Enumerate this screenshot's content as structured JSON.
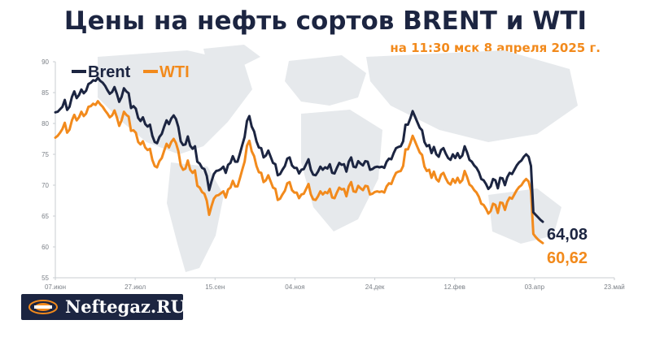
{
  "chart_data": {
    "type": "line",
    "title": "Цены на нефть сортов BRENT и WTI",
    "subtitle": "на 11:30 мск 8 апреля 2025 г.",
    "ylim": [
      55,
      90
    ],
    "yticks": [
      "90",
      "85",
      "80",
      "75",
      "70",
      "65",
      "60",
      "55"
    ],
    "xtick_labels": [
      "07.июн",
      "27.июл",
      "15.сен",
      "04.ноя",
      "24.дек",
      "12.фев",
      "03.апр",
      "23.май"
    ],
    "legend": {
      "position": "top-left"
    },
    "grid": false,
    "series": [
      {
        "name": "Brent",
        "color": "#1c2541",
        "last_label": "64,08",
        "values": [
          81.8,
          81.9,
          82.3,
          82.7,
          83.8,
          82.2,
          82.7,
          84.3,
          85.2,
          84.1,
          84.6,
          85.5,
          84.9,
          85.3,
          86.4,
          86.6,
          87.0,
          86.9,
          87.4,
          86.9,
          86.6,
          86.1,
          85.4,
          84.8,
          85.1,
          85.9,
          84.8,
          83.5,
          84.3,
          85.7,
          85.2,
          84.9,
          82.5,
          82.8,
          82.4,
          80.9,
          80.4,
          81.0,
          79.9,
          79.5,
          79.8,
          78.0,
          77.0,
          76.8,
          77.8,
          78.3,
          79.5,
          80.5,
          79.9,
          80.8,
          81.3,
          80.7,
          79.4,
          77.1,
          76.5,
          76.6,
          77.9,
          76.4,
          75.9,
          76.3,
          73.8,
          73.5,
          72.8,
          72.6,
          71.5,
          69.2,
          70.6,
          71.8,
          72.3,
          72.4,
          72.6,
          73.0,
          72.0,
          73.3,
          73.6,
          74.7,
          73.8,
          73.8,
          75.1,
          76.5,
          77.8,
          80.4,
          81.2,
          79.5,
          78.7,
          77.1,
          76.1,
          76.0,
          74.5,
          74.8,
          75.6,
          74.6,
          73.6,
          73.4,
          71.6,
          71.8,
          72.5,
          73.1,
          74.3,
          74.5,
          73.2,
          72.8,
          72.8,
          71.9,
          72.5,
          72.6,
          73.4,
          74.2,
          72.5,
          71.7,
          71.6,
          72.2,
          73.0,
          72.5,
          72.9,
          72.7,
          73.4,
          72.0,
          71.9,
          72.8,
          73.6,
          73.3,
          73.4,
          72.2,
          73.8,
          74.5,
          73.0,
          72.9,
          73.9,
          73.5,
          73.2,
          73.9,
          73.8,
          72.5,
          72.6,
          72.9,
          73.0,
          72.9,
          73.0,
          72.8,
          73.8,
          74.3,
          74.2,
          75.2,
          76.0,
          76.2,
          76.3,
          77.1,
          79.8,
          79.8,
          80.8,
          82.0,
          81.1,
          80.2,
          79.3,
          78.9,
          77.0,
          76.3,
          76.5,
          75.2,
          76.2,
          75.0,
          74.6,
          75.7,
          76.0,
          75.1,
          74.4,
          74.1,
          75.0,
          74.4,
          75.2,
          74.4,
          74.8,
          76.3,
          75.3,
          74.1,
          73.8,
          73.2,
          72.8,
          72.1,
          71.0,
          70.8,
          70.2,
          69.4,
          69.8,
          71.0,
          70.8,
          69.5,
          71.2,
          71.1,
          70.0,
          71.3,
          72.0,
          71.8,
          72.5,
          73.2,
          73.7,
          74.0,
          74.6,
          75.0,
          74.6,
          73.1,
          65.6,
          65.2,
          64.8,
          64.4,
          64.08
        ]
      },
      {
        "name": "WTI",
        "color": "#f28a1c",
        "last_label": "60,62",
        "values": [
          77.7,
          78.0,
          78.5,
          79.1,
          80.1,
          78.5,
          79.0,
          80.5,
          81.4,
          80.5,
          81.0,
          81.9,
          81.2,
          81.6,
          82.7,
          82.8,
          83.2,
          83.0,
          83.6,
          83.1,
          82.7,
          82.1,
          81.6,
          81.0,
          81.3,
          82.1,
          81.0,
          79.6,
          80.5,
          81.9,
          81.4,
          81.1,
          78.8,
          78.9,
          78.5,
          77.0,
          76.6,
          77.1,
          76.1,
          75.7,
          75.9,
          74.1,
          73.1,
          72.9,
          73.9,
          74.4,
          75.6,
          76.7,
          76.1,
          77.0,
          77.5,
          76.8,
          75.5,
          73.2,
          72.5,
          72.7,
          74.0,
          72.5,
          72.0,
          72.4,
          69.9,
          69.6,
          68.9,
          68.6,
          67.5,
          65.2,
          66.6,
          67.8,
          68.3,
          68.4,
          68.7,
          69.0,
          68.0,
          69.3,
          69.6,
          70.7,
          69.8,
          69.8,
          71.1,
          72.5,
          73.8,
          76.4,
          77.2,
          75.5,
          74.7,
          73.1,
          72.1,
          72.0,
          70.5,
          70.8,
          71.6,
          70.6,
          69.6,
          69.4,
          67.6,
          67.8,
          68.5,
          69.1,
          70.3,
          70.5,
          69.2,
          68.8,
          68.8,
          67.9,
          68.5,
          68.6,
          69.4,
          70.2,
          68.5,
          67.7,
          67.6,
          68.2,
          69.0,
          68.5,
          68.9,
          68.7,
          69.4,
          68.0,
          67.9,
          68.8,
          69.6,
          69.3,
          69.4,
          68.2,
          69.8,
          70.5,
          69.0,
          68.9,
          69.9,
          69.5,
          69.2,
          69.9,
          69.8,
          68.5,
          68.6,
          68.9,
          69.0,
          68.9,
          69.0,
          68.8,
          69.8,
          70.3,
          70.2,
          71.2,
          72.0,
          72.2,
          72.3,
          73.1,
          75.8,
          75.8,
          76.8,
          78.0,
          77.1,
          76.2,
          75.3,
          74.9,
          73.0,
          72.3,
          72.5,
          71.2,
          72.2,
          71.0,
          70.6,
          71.7,
          72.0,
          71.1,
          70.4,
          70.1,
          71.0,
          70.4,
          71.2,
          70.4,
          70.8,
          72.3,
          71.3,
          70.1,
          69.8,
          69.2,
          68.8,
          68.1,
          67.0,
          66.8,
          66.2,
          65.4,
          65.8,
          67.0,
          66.8,
          65.5,
          67.2,
          67.1,
          66.0,
          67.3,
          68.0,
          67.8,
          68.5,
          69.2,
          69.7,
          70.0,
          70.6,
          71.0,
          70.6,
          69.1,
          62.1,
          61.6,
          61.2,
          60.9,
          60.62
        ]
      }
    ]
  },
  "logo": {
    "text": "Neftegaz.RU"
  },
  "colors": {
    "brent": "#1c2541",
    "wti": "#f28a1c",
    "map": "#e6e9ec"
  }
}
